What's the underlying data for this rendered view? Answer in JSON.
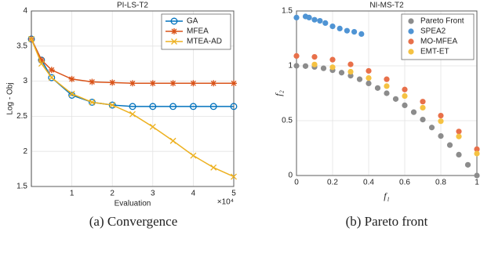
{
  "chart_data": [
    {
      "type": "line",
      "title": "PI-LS-T2",
      "x_label": "Evaluation",
      "y_label": "Log - Obj",
      "x_multiplier": "×10⁴",
      "x": [
        0,
        2500,
        5000,
        10000,
        15000,
        20000,
        25000,
        30000,
        35000,
        40000,
        45000,
        50000
      ],
      "series": [
        {
          "name": "GA",
          "color": "#0072bd",
          "marker": "o",
          "values": [
            3.6,
            3.3,
            3.05,
            2.8,
            2.7,
            2.66,
            2.64,
            2.64,
            2.64,
            2.64,
            2.64,
            2.64
          ]
        },
        {
          "name": "MFEA",
          "color": "#d95319",
          "marker": "*",
          "values": [
            3.6,
            3.3,
            3.16,
            3.03,
            2.99,
            2.98,
            2.97,
            2.97,
            2.97,
            2.97,
            2.97,
            2.97
          ]
        },
        {
          "name": "MTEA-AD",
          "color": "#edb120",
          "marker": "x",
          "values": [
            3.6,
            3.25,
            3.05,
            2.82,
            2.7,
            2.66,
            2.53,
            2.35,
            2.15,
            1.94,
            1.77,
            1.64
          ]
        }
      ],
      "xlim": [
        0,
        50000
      ],
      "ylim": [
        1.5,
        4
      ],
      "xticks": [
        {
          "value": 10000,
          "label": "1"
        },
        {
          "value": 20000,
          "label": "2"
        },
        {
          "value": 30000,
          "label": "3"
        },
        {
          "value": 40000,
          "label": "4"
        },
        {
          "value": 50000,
          "label": "5"
        }
      ],
      "yticks": [
        1.5,
        2,
        2.5,
        3,
        3.5,
        4
      ],
      "grid": true,
      "legend": "northeast",
      "caption": "(a)  Convergence"
    },
    {
      "type": "scatter",
      "title": "NI-MS-T2",
      "x_label": "f₁",
      "y_label": "f₂",
      "series": [
        {
          "name": "Pareto Front",
          "color": "#8c8c8c",
          "x": [
            0,
            0.05,
            0.1,
            0.15,
            0.2,
            0.25,
            0.3,
            0.35,
            0.4,
            0.45,
            0.5,
            0.55,
            0.6,
            0.65,
            0.7,
            0.75,
            0.8,
            0.85,
            0.9,
            0.95,
            1
          ],
          "values": [
            1,
            0.9975,
            0.99,
            0.9775,
            0.96,
            0.9375,
            0.91,
            0.8775,
            0.84,
            0.7975,
            0.75,
            0.6975,
            0.64,
            0.5775,
            0.51,
            0.4375,
            0.36,
            0.2775,
            0.19,
            0.0975,
            0
          ]
        },
        {
          "name": "SPEA2",
          "color": "#4f94d4",
          "x": [
            0,
            0.05,
            0.07,
            0.1,
            0.13,
            0.16,
            0.2,
            0.24,
            0.28,
            0.32,
            0.36
          ],
          "values": [
            1.44,
            1.45,
            1.44,
            1.42,
            1.41,
            1.39,
            1.36,
            1.34,
            1.32,
            1.31,
            1.29
          ]
        },
        {
          "name": "MO-MFEA",
          "color": "#e8704a",
          "x": [
            0,
            0.1,
            0.2,
            0.3,
            0.4,
            0.5,
            0.6,
            0.7,
            0.8,
            0.9,
            1
          ],
          "values": [
            1.09,
            1.0815,
            1.056,
            1.0135,
            0.954,
            0.8775,
            0.784,
            0.6735,
            0.546,
            0.4015,
            0.24
          ]
        },
        {
          "name": "EMT-ET",
          "color": "#f5c242",
          "x": [
            0.1,
            0.2,
            0.3,
            0.4,
            0.5,
            0.6,
            0.7,
            0.8,
            0.9,
            1
          ],
          "values": [
            1.0118,
            0.9872,
            0.9462,
            0.8888,
            0.815,
            0.7248,
            0.6182,
            0.4952,
            0.3558,
            0.2
          ]
        }
      ],
      "xlim": [
        0,
        1
      ],
      "ylim": [
        0,
        1.5
      ],
      "xticks": [
        0,
        0.2,
        0.4,
        0.6,
        0.8,
        1
      ],
      "yticks": [
        0,
        0.5,
        1,
        1.5
      ],
      "grid": true,
      "legend": "northeast",
      "caption": "(b)  Pareto front"
    }
  ]
}
